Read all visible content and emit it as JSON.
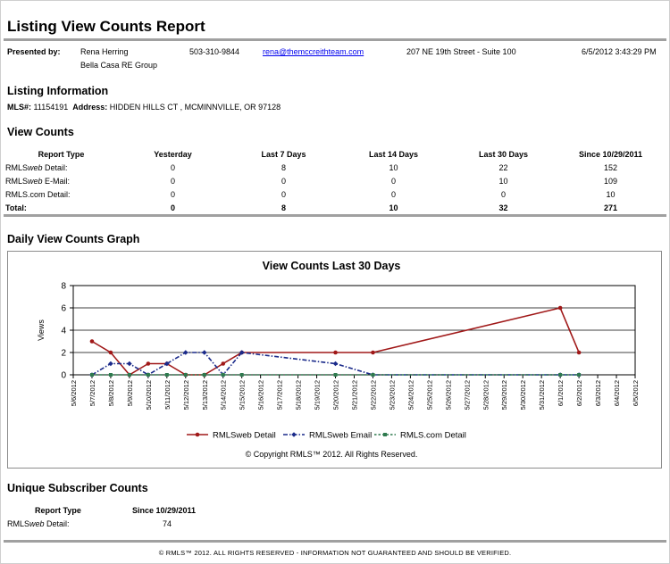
{
  "report_title": "Listing View Counts Report",
  "presenter": {
    "label": "Presented by:",
    "name": "Rena Herring",
    "company": "Bella Casa RE Group",
    "phone": "503-310-9844",
    "email": "rena@themccreithteam.com",
    "address": "207 NE 19th Street - Suite 100",
    "datetime": "6/5/2012 3:43:29 PM"
  },
  "listing_info": {
    "heading": "Listing Information",
    "mls_label": "MLS#:",
    "mls": "11154191",
    "address_label": "Address:",
    "address": "HIDDEN HILLS CT , MCMINNVILLE, OR 97128"
  },
  "view_counts": {
    "heading": "View Counts",
    "columns": [
      "Report Type",
      "Yesterday",
      "Last 7 Days",
      "Last 14 Days",
      "Last 30 Days",
      "Since 10/29/2011"
    ],
    "rows": [
      {
        "type_prefix": "RMLS",
        "type_em": "web",
        "type_suffix": " Detail:",
        "values": [
          "0",
          "8",
          "10",
          "22",
          "152"
        ]
      },
      {
        "type_prefix": "RMLS",
        "type_em": "web",
        "type_suffix": " E-Mail:",
        "values": [
          "0",
          "0",
          "0",
          "10",
          "109"
        ]
      },
      {
        "type_prefix": "RMLS.com Detail:",
        "type_em": "",
        "type_suffix": "",
        "values": [
          "0",
          "0",
          "0",
          "0",
          "10"
        ]
      }
    ],
    "total": {
      "label": "Total:",
      "values": [
        "0",
        "8",
        "10",
        "32",
        "271"
      ]
    }
  },
  "graph_section": {
    "heading": "Daily View Counts Graph",
    "copyright": "© Copyright RMLS™ 2012.  All Rights Reserved."
  },
  "chart_data": {
    "type": "line",
    "title": "View Counts Last 30 Days",
    "xlabel": "",
    "ylabel": "Views",
    "ylim": [
      0,
      8
    ],
    "yticks": [
      0,
      2,
      4,
      6,
      8
    ],
    "grid": true,
    "legend_position": "bottom",
    "x": [
      "5/6/2012",
      "5/7/2012",
      "5/8/2012",
      "5/9/2012",
      "5/10/2012",
      "5/11/2012",
      "5/12/2012",
      "5/13/2012",
      "5/14/2012",
      "5/15/2012",
      "5/16/2012",
      "5/17/2012",
      "5/18/2012",
      "5/19/2012",
      "5/20/2012",
      "5/21/2012",
      "5/22/2012",
      "5/23/2012",
      "5/24/2012",
      "5/25/2012",
      "5/26/2012",
      "5/27/2012",
      "5/28/2012",
      "5/29/2012",
      "5/30/2012",
      "5/31/2012",
      "6/1/2012",
      "6/2/2012",
      "6/3/2012",
      "6/4/2012",
      "6/5/2012"
    ],
    "series": [
      {
        "name": "RMLSweb Detail",
        "color": "#a01818",
        "marker": "circle",
        "dash": "",
        "points": [
          [
            "5/7/2012",
            3
          ],
          [
            "5/8/2012",
            2
          ],
          [
            "5/9/2012",
            0
          ],
          [
            "5/10/2012",
            1
          ],
          [
            "5/11/2012",
            1
          ],
          [
            "5/12/2012",
            0
          ],
          [
            "5/13/2012",
            0
          ],
          [
            "5/14/2012",
            1
          ],
          [
            "5/15/2012",
            2
          ],
          [
            "5/20/2012",
            2
          ],
          [
            "5/22/2012",
            2
          ],
          [
            "6/1/2012",
            6
          ],
          [
            "6/2/2012",
            2
          ]
        ]
      },
      {
        "name": "RMLSweb Email",
        "color": "#1a2a8a",
        "marker": "diamond",
        "dash": "5,2,1.5,2",
        "points": [
          [
            "5/7/2012",
            0
          ],
          [
            "5/8/2012",
            1
          ],
          [
            "5/9/2012",
            1
          ],
          [
            "5/10/2012",
            0
          ],
          [
            "5/11/2012",
            1
          ],
          [
            "5/12/2012",
            2
          ],
          [
            "5/13/2012",
            2
          ],
          [
            "5/14/2012",
            0
          ],
          [
            "5/15/2012",
            2
          ],
          [
            "5/20/2012",
            1
          ],
          [
            "5/22/2012",
            0
          ],
          [
            "6/1/2012",
            0
          ],
          [
            "6/2/2012",
            0
          ]
        ]
      },
      {
        "name": "RMLS.com Detail",
        "color": "#2e7a4e",
        "marker": "square",
        "dash": "2.5,2",
        "points": [
          [
            "5/7/2012",
            0
          ],
          [
            "5/8/2012",
            0
          ],
          [
            "5/9/2012",
            0
          ],
          [
            "5/10/2012",
            0
          ],
          [
            "5/11/2012",
            0
          ],
          [
            "5/12/2012",
            0
          ],
          [
            "5/13/2012",
            0
          ],
          [
            "5/14/2012",
            0
          ],
          [
            "5/15/2012",
            0
          ],
          [
            "5/20/2012",
            0
          ],
          [
            "5/22/2012",
            0
          ],
          [
            "6/1/2012",
            0
          ],
          [
            "6/2/2012",
            0
          ]
        ]
      }
    ]
  },
  "unique_subscriber": {
    "heading": "Unique Subscriber Counts",
    "col_type": "Report Type",
    "col_since": "Since 10/29/2011",
    "row": {
      "type_prefix": "RMLS",
      "type_em": "web",
      "type_suffix": " Detail:",
      "value": "74"
    }
  },
  "footer": "© RMLS™ 2012. ALL RIGHTS RESERVED - INFORMATION NOT GUARANTEED AND SHOULD BE VERIFIED."
}
